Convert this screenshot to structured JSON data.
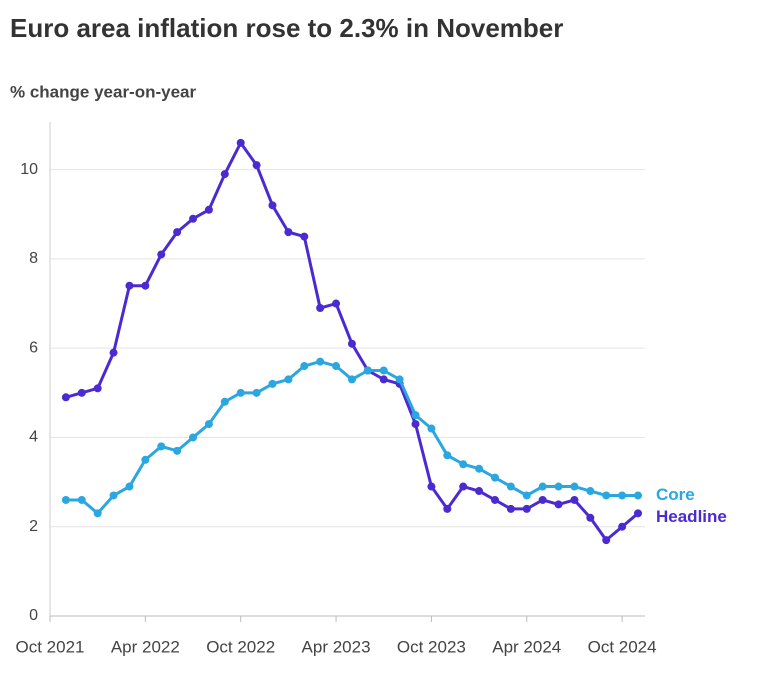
{
  "chart_data": {
    "type": "line",
    "title": "Euro area inflation rose to 2.3% in November",
    "subtitle": "% change year-on-year",
    "x": [
      "2021-11",
      "2021-12",
      "2022-01",
      "2022-02",
      "2022-03",
      "2022-04",
      "2022-05",
      "2022-06",
      "2022-07",
      "2022-08",
      "2022-09",
      "2022-10",
      "2022-11",
      "2022-12",
      "2023-01",
      "2023-02",
      "2023-03",
      "2023-04",
      "2023-05",
      "2023-06",
      "2023-07",
      "2023-08",
      "2023-09",
      "2023-10",
      "2023-11",
      "2023-12",
      "2024-01",
      "2024-02",
      "2024-03",
      "2024-04",
      "2024-05",
      "2024-06",
      "2024-07",
      "2024-08",
      "2024-09",
      "2024-10",
      "2024-11"
    ],
    "series": [
      {
        "name": "Headline",
        "color": "#4b2bd1",
        "values": [
          4.9,
          5.0,
          5.1,
          5.9,
          7.4,
          7.4,
          8.1,
          8.6,
          8.9,
          9.1,
          9.9,
          10.6,
          10.1,
          9.2,
          8.6,
          8.5,
          6.9,
          7.0,
          6.1,
          5.5,
          5.3,
          5.2,
          4.3,
          2.9,
          2.4,
          2.9,
          2.8,
          2.6,
          2.4,
          2.4,
          2.6,
          2.5,
          2.6,
          2.2,
          1.7,
          2.0,
          2.3
        ]
      },
      {
        "name": "Core",
        "color": "#2aa7e0",
        "values": [
          2.6,
          2.6,
          2.3,
          2.7,
          2.9,
          3.5,
          3.8,
          3.7,
          4.0,
          4.3,
          4.8,
          5.0,
          5.0,
          5.2,
          5.3,
          5.6,
          5.7,
          5.6,
          5.3,
          5.5,
          5.5,
          5.3,
          4.5,
          4.2,
          3.6,
          3.4,
          3.3,
          3.1,
          2.9,
          2.7,
          2.9,
          2.9,
          2.9,
          2.8,
          2.7,
          2.7,
          2.7
        ]
      }
    ],
    "xlim": [
      "2021-10",
      "2024-11"
    ],
    "xticks": [
      {
        "value": "2021-10",
        "label": "Oct 2021"
      },
      {
        "value": "2022-04",
        "label": "Apr 2022"
      },
      {
        "value": "2022-10",
        "label": "Oct 2022"
      },
      {
        "value": "2023-04",
        "label": "Apr 2023"
      },
      {
        "value": "2023-10",
        "label": "Oct 2023"
      },
      {
        "value": "2024-04",
        "label": "Apr 2024"
      },
      {
        "value": "2024-10",
        "label": "Oct 2024"
      }
    ],
    "ylim": [
      0,
      11
    ],
    "yticks": [
      0,
      2,
      4,
      6,
      8,
      10
    ],
    "grid": true
  }
}
